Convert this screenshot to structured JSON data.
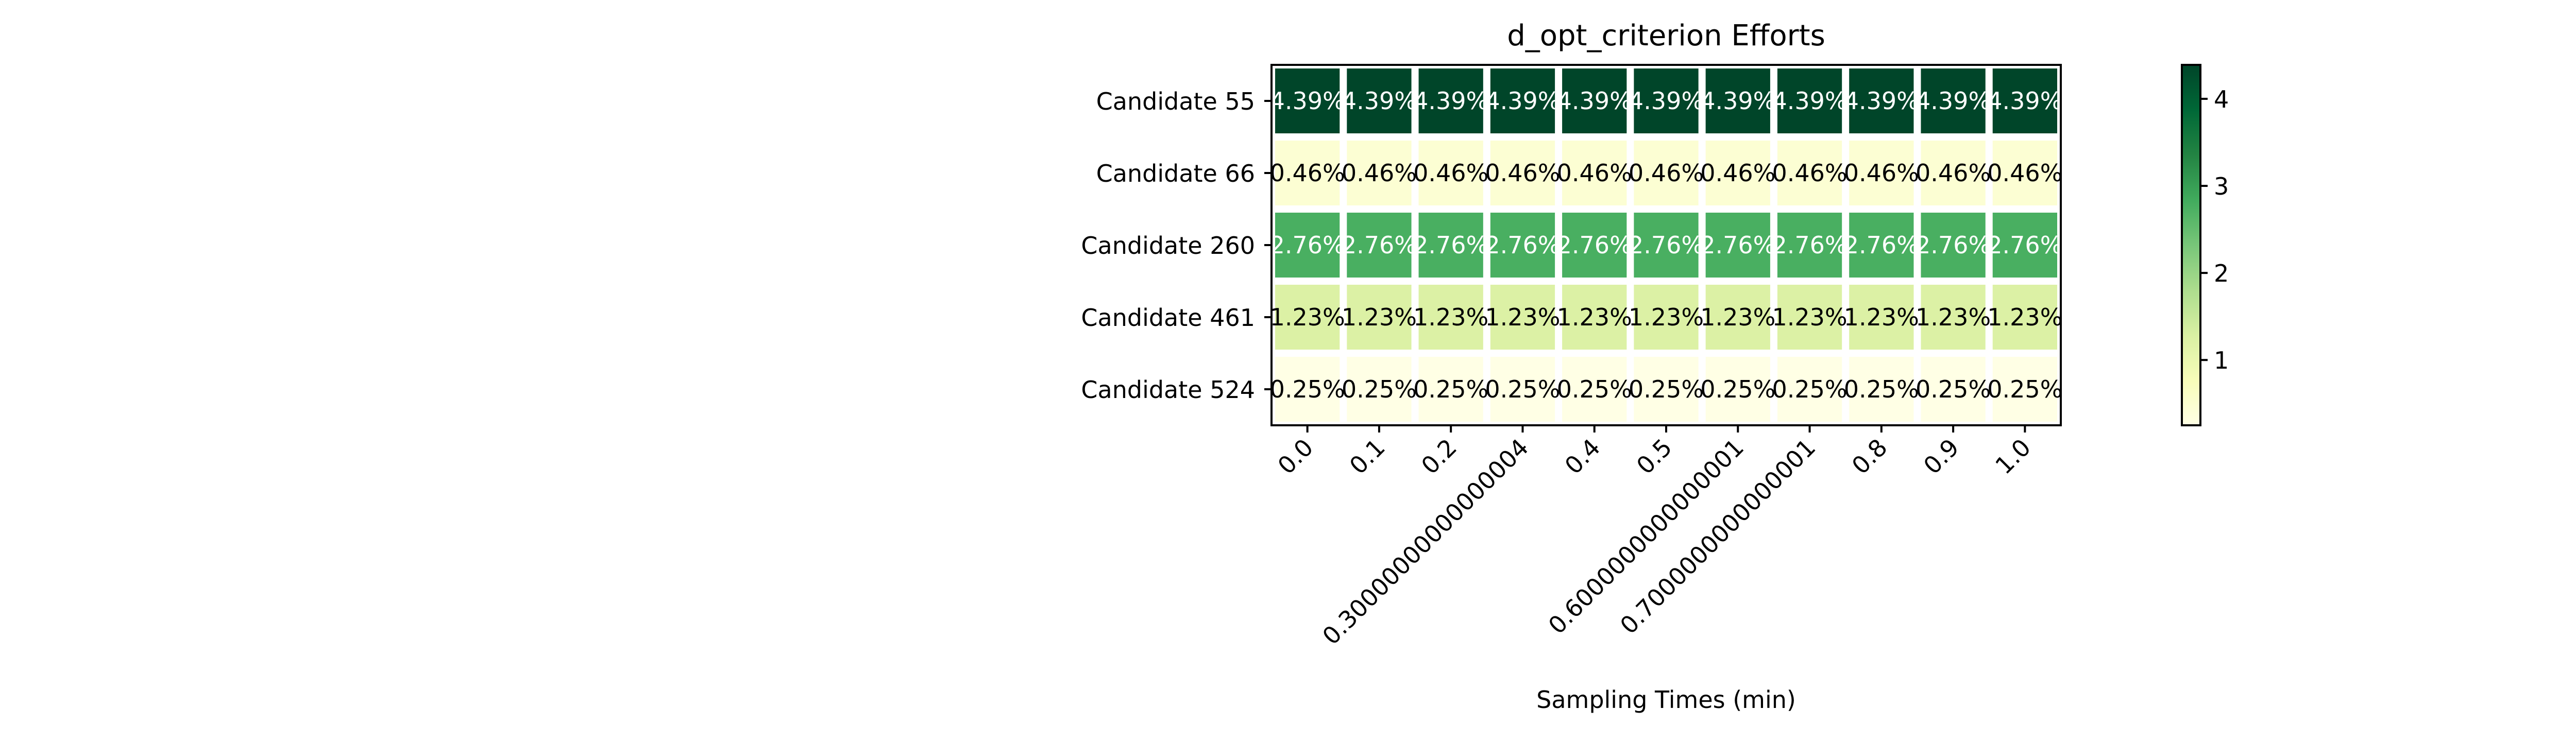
{
  "chart_data": {
    "type": "heatmap",
    "title": "d_opt_criterion Efforts",
    "xlabel": "Sampling Times (min)",
    "ylabel": "",
    "x_tick_labels": [
      "0.0",
      "0.1",
      "0.2",
      "0.30000000000000004",
      "0.4",
      "0.5",
      "0.6000000000000001",
      "0.7000000000000001",
      "0.8",
      "0.9",
      "1.0"
    ],
    "y_tick_labels": [
      "Candidate 55",
      "Candidate 66",
      "Candidate 260",
      "Candidate 461",
      "Candidate 524"
    ],
    "values": [
      [
        4.39,
        4.39,
        4.39,
        4.39,
        4.39,
        4.39,
        4.39,
        4.39,
        4.39,
        4.39,
        4.39
      ],
      [
        0.46,
        0.46,
        0.46,
        0.46,
        0.46,
        0.46,
        0.46,
        0.46,
        0.46,
        0.46,
        0.46
      ],
      [
        2.76,
        2.76,
        2.76,
        2.76,
        2.76,
        2.76,
        2.76,
        2.76,
        2.76,
        2.76,
        2.76
      ],
      [
        1.23,
        1.23,
        1.23,
        1.23,
        1.23,
        1.23,
        1.23,
        1.23,
        1.23,
        1.23,
        1.23
      ],
      [
        0.25,
        0.25,
        0.25,
        0.25,
        0.25,
        0.25,
        0.25,
        0.25,
        0.25,
        0.25,
        0.25
      ]
    ],
    "cell_labels": [
      [
        "4.39%",
        "4.39%",
        "4.39%",
        "4.39%",
        "4.39%",
        "4.39%",
        "4.39%",
        "4.39%",
        "4.39%",
        "4.39%",
        "4.39%"
      ],
      [
        "0.46%",
        "0.46%",
        "0.46%",
        "0.46%",
        "0.46%",
        "0.46%",
        "0.46%",
        "0.46%",
        "0.46%",
        "0.46%",
        "0.46%"
      ],
      [
        "2.76%",
        "2.76%",
        "2.76%",
        "2.76%",
        "2.76%",
        "2.76%",
        "2.76%",
        "2.76%",
        "2.76%",
        "2.76%",
        "2.76%"
      ],
      [
        "1.23%",
        "1.23%",
        "1.23%",
        "1.23%",
        "1.23%",
        "1.23%",
        "1.23%",
        "1.23%",
        "1.23%",
        "1.23%",
        "1.23%"
      ],
      [
        "0.25%",
        "0.25%",
        "0.25%",
        "0.25%",
        "0.25%",
        "0.25%",
        "0.25%",
        "0.25%",
        "0.25%",
        "0.25%",
        "0.25%"
      ]
    ],
    "colormap": "YlGn",
    "color_range": [
      0.25,
      4.39
    ],
    "colorbar": {
      "ticks": [
        1,
        2,
        3,
        4
      ],
      "tick_labels": [
        "1",
        "2",
        "3",
        "4"
      ],
      "placement": "right"
    },
    "x_tick_rotation": 45,
    "grid": false
  }
}
